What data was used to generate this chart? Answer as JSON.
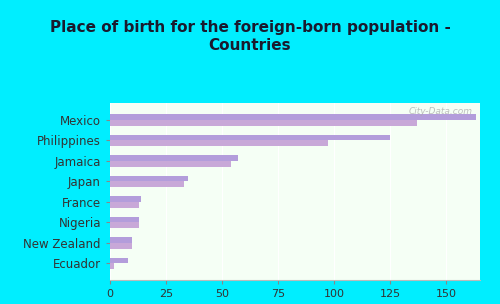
{
  "title": "Place of birth for the foreign-born population -\nCountries",
  "categories": [
    "Mexico",
    "Philippines",
    "Jamaica",
    "Japan",
    "France",
    "Nigeria",
    "New Zealand",
    "Ecuador"
  ],
  "values1": [
    163,
    125,
    57,
    35,
    14,
    13,
    10,
    8
  ],
  "values2": [
    137,
    97,
    54,
    33,
    13,
    13,
    10,
    2
  ],
  "bar_color1": "#b39ddb",
  "bar_color2": "#c8a8d8",
  "background_outer": "#00eeff",
  "background_inner_top": "#f5fff5",
  "background_inner_bottom": "#e8f8e8",
  "xlim": [
    0,
    165
  ],
  "xticks": [
    0,
    25,
    50,
    75,
    100,
    125,
    150
  ],
  "title_fontsize": 11,
  "tick_fontsize": 8,
  "label_fontsize": 8.5
}
